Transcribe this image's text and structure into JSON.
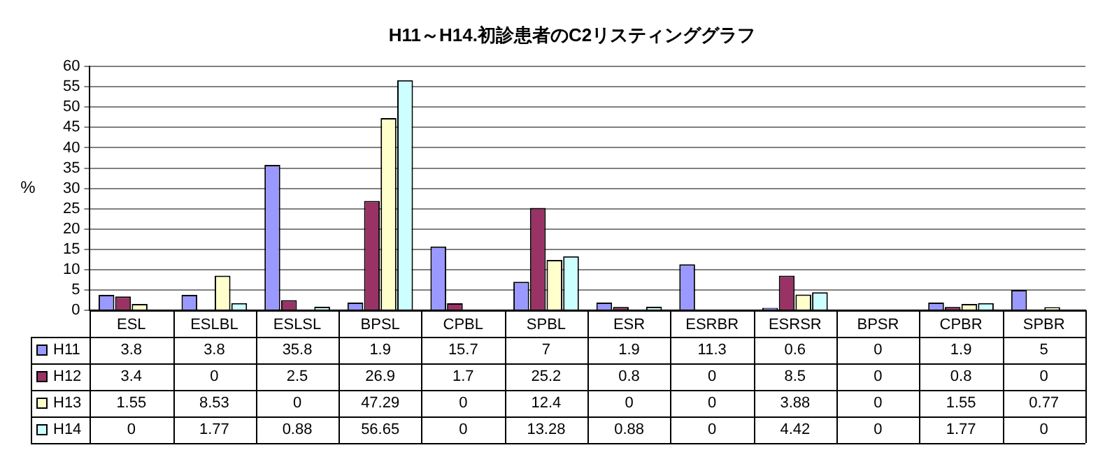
{
  "chart_data": {
    "type": "bar",
    "title": "H11～H14.初診患者のC2リスティンググラフ",
    "ylabel": "%",
    "categories": [
      "ESL",
      "ESLBL",
      "ESLSL",
      "BPSL",
      "CPBL",
      "SPBL",
      "ESR",
      "ESRBR",
      "ESRSR",
      "BPSR",
      "CPBR",
      "SPBR"
    ],
    "series": [
      {
        "name": "H11",
        "color": "#9999ff",
        "values": [
          3.8,
          3.8,
          35.8,
          1.9,
          15.7,
          7,
          1.9,
          11.3,
          0.6,
          0,
          1.9,
          5
        ]
      },
      {
        "name": "H12",
        "color": "#993366",
        "values": [
          3.4,
          0,
          2.5,
          26.9,
          1.7,
          25.2,
          0.8,
          0,
          8.5,
          0,
          0.8,
          0
        ]
      },
      {
        "name": "H13",
        "color": "#ffffcc",
        "values": [
          1.55,
          8.53,
          0,
          47.29,
          0,
          12.4,
          0,
          0,
          3.88,
          0,
          1.55,
          0.77
        ]
      },
      {
        "name": "H14",
        "color": "#ccffff",
        "values": [
          0,
          1.77,
          0.88,
          56.65,
          0,
          13.28,
          0.88,
          0,
          4.42,
          0,
          1.77,
          0
        ]
      }
    ],
    "ylim": [
      0,
      60
    ],
    "yticks": [
      0,
      5,
      10,
      15,
      20,
      25,
      30,
      35,
      40,
      45,
      50,
      55,
      60
    ],
    "grid": "y",
    "legend": "bottom left",
    "data_labels": true
  }
}
